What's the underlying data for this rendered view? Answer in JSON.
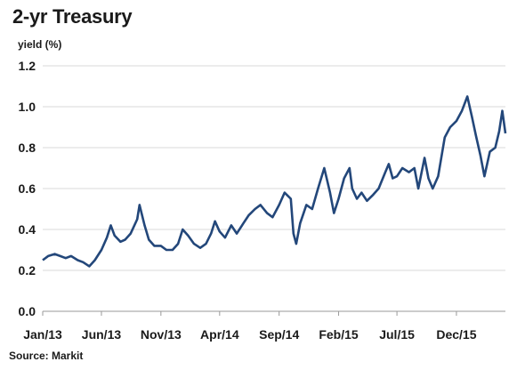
{
  "chart_data": {
    "type": "line",
    "title": "2-yr Treasury",
    "ylabel": "yield (%)",
    "xlabel": "",
    "source": "Source: Markit",
    "ylim": [
      0,
      1.2
    ],
    "yticks": [
      "0.0",
      "0.2",
      "0.4",
      "0.6",
      "0.8",
      "1.0",
      "1.2"
    ],
    "xticks": [
      "Jan/13",
      "Jun/13",
      "Nov/13",
      "Apr/14",
      "Sep/14",
      "Feb/15",
      "Jul/15",
      "Dec/15"
    ],
    "grid": true,
    "line_color": "#23477a",
    "series": [
      {
        "x": [
          "2013-01-01",
          "2013-01-15",
          "2013-02-01",
          "2013-02-15",
          "2013-03-01",
          "2013-03-15",
          "2013-04-01",
          "2013-04-15",
          "2013-05-01",
          "2013-05-15",
          "2013-06-01",
          "2013-06-15",
          "2013-06-25",
          "2013-07-05",
          "2013-07-20",
          "2013-08-01",
          "2013-08-15",
          "2013-09-01",
          "2013-09-07",
          "2013-09-20",
          "2013-10-01",
          "2013-10-15",
          "2013-11-01",
          "2013-11-15",
          "2013-12-01",
          "2013-12-15",
          "2013-12-27",
          "2014-01-10",
          "2014-01-25",
          "2014-02-10",
          "2014-02-25",
          "2014-03-10",
          "2014-03-20",
          "2014-04-01",
          "2014-04-15",
          "2014-05-01",
          "2014-05-15",
          "2014-06-01",
          "2014-06-15",
          "2014-07-01",
          "2014-07-15",
          "2014-08-01",
          "2014-08-15",
          "2014-09-01",
          "2014-09-15",
          "2014-10-01",
          "2014-10-08",
          "2014-10-15",
          "2014-10-25",
          "2014-11-10",
          "2014-11-25",
          "2014-12-10",
          "2014-12-26",
          "2015-01-10",
          "2015-01-20",
          "2015-02-01",
          "2015-02-15",
          "2015-03-01",
          "2015-03-08",
          "2015-03-20",
          "2015-04-01",
          "2015-04-15",
          "2015-05-01",
          "2015-05-15",
          "2015-06-01",
          "2015-06-10",
          "2015-06-20",
          "2015-07-01",
          "2015-07-15",
          "2015-08-01",
          "2015-08-15",
          "2015-08-25",
          "2015-09-10",
          "2015-09-20",
          "2015-10-01",
          "2015-10-15",
          "2015-11-01",
          "2015-11-15",
          "2015-12-01",
          "2015-12-15",
          "2015-12-29",
          "2016-01-10",
          "2016-01-20",
          "2016-02-01",
          "2016-02-11",
          "2016-02-25",
          "2016-03-10",
          "2016-03-20",
          "2016-03-28",
          "2016-04-05"
        ],
        "values": [
          0.25,
          0.27,
          0.28,
          0.27,
          0.26,
          0.27,
          0.25,
          0.24,
          0.22,
          0.25,
          0.3,
          0.36,
          0.42,
          0.37,
          0.34,
          0.35,
          0.38,
          0.45,
          0.52,
          0.42,
          0.35,
          0.32,
          0.32,
          0.3,
          0.3,
          0.33,
          0.4,
          0.37,
          0.33,
          0.31,
          0.33,
          0.38,
          0.44,
          0.39,
          0.36,
          0.42,
          0.38,
          0.43,
          0.47,
          0.5,
          0.52,
          0.48,
          0.46,
          0.52,
          0.58,
          0.55,
          0.38,
          0.33,
          0.43,
          0.52,
          0.5,
          0.6,
          0.7,
          0.58,
          0.48,
          0.55,
          0.65,
          0.7,
          0.6,
          0.55,
          0.58,
          0.54,
          0.57,
          0.6,
          0.68,
          0.72,
          0.65,
          0.66,
          0.7,
          0.68,
          0.7,
          0.6,
          0.75,
          0.65,
          0.6,
          0.66,
          0.85,
          0.9,
          0.93,
          0.98,
          1.05,
          0.95,
          0.86,
          0.76,
          0.66,
          0.78,
          0.8,
          0.88,
          0.98,
          0.87
        ]
      }
    ]
  }
}
